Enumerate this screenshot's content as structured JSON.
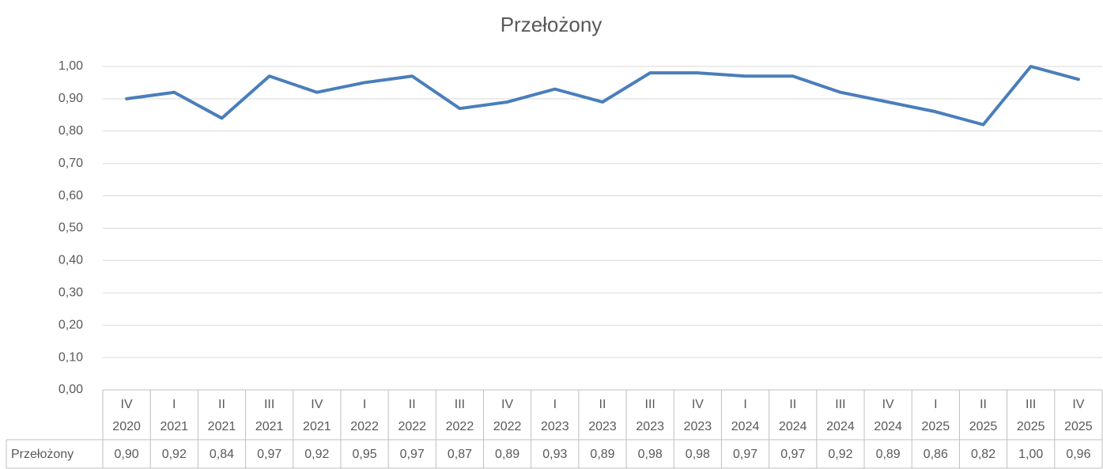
{
  "chart_data": {
    "type": "line",
    "title": "Przełożony",
    "categories": [
      [
        "IV",
        "2020"
      ],
      [
        "I",
        "2021"
      ],
      [
        "II",
        "2021"
      ],
      [
        "III",
        "2021"
      ],
      [
        "IV",
        "2021"
      ],
      [
        "I",
        "2022"
      ],
      [
        "II",
        "2022"
      ],
      [
        "III",
        "2022"
      ],
      [
        "IV",
        "2022"
      ],
      [
        "I",
        "2023"
      ],
      [
        "II",
        "2023"
      ],
      [
        "III",
        "2023"
      ],
      [
        "IV",
        "2023"
      ],
      [
        "I",
        "2024"
      ],
      [
        "II",
        "2024"
      ],
      [
        "III",
        "2024"
      ],
      [
        "IV",
        "2024"
      ],
      [
        "I",
        "2025"
      ],
      [
        "II",
        "2025"
      ],
      [
        "III",
        "2025"
      ],
      [
        "IV",
        "2025"
      ]
    ],
    "series": [
      {
        "name": "Przełożony",
        "color": "#4a7ebb",
        "values": [
          0.9,
          0.92,
          0.84,
          0.97,
          0.92,
          0.95,
          0.97,
          0.87,
          0.89,
          0.93,
          0.89,
          0.98,
          0.98,
          0.97,
          0.97,
          0.92,
          0.89,
          0.86,
          0.82,
          1.0,
          0.96
        ],
        "value_labels": [
          "0,90",
          "0,92",
          "0,84",
          "0,97",
          "0,92",
          "0,95",
          "0,97",
          "0,87",
          "0,89",
          "0,93",
          "0,89",
          "0,98",
          "0,98",
          "0,97",
          "0,97",
          "0,92",
          "0,89",
          "0,86",
          "0,82",
          "1,00",
          "0,96"
        ]
      }
    ],
    "ylim": [
      0,
      1
    ],
    "yticks": [
      {
        "value": 0,
        "label": "0,00"
      },
      {
        "value": 0.1,
        "label": "0,10"
      },
      {
        "value": 0.2,
        "label": "0,20"
      },
      {
        "value": 0.3,
        "label": "0,30"
      },
      {
        "value": 0.4,
        "label": "0,40"
      },
      {
        "value": 0.5,
        "label": "0,50"
      },
      {
        "value": 0.6,
        "label": "0,60"
      },
      {
        "value": 0.7,
        "label": "0,70"
      },
      {
        "value": 0.8,
        "label": "0,80"
      },
      {
        "value": 0.9,
        "label": "0,90"
      },
      {
        "value": 1,
        "label": "1,00"
      }
    ],
    "grid": true
  }
}
